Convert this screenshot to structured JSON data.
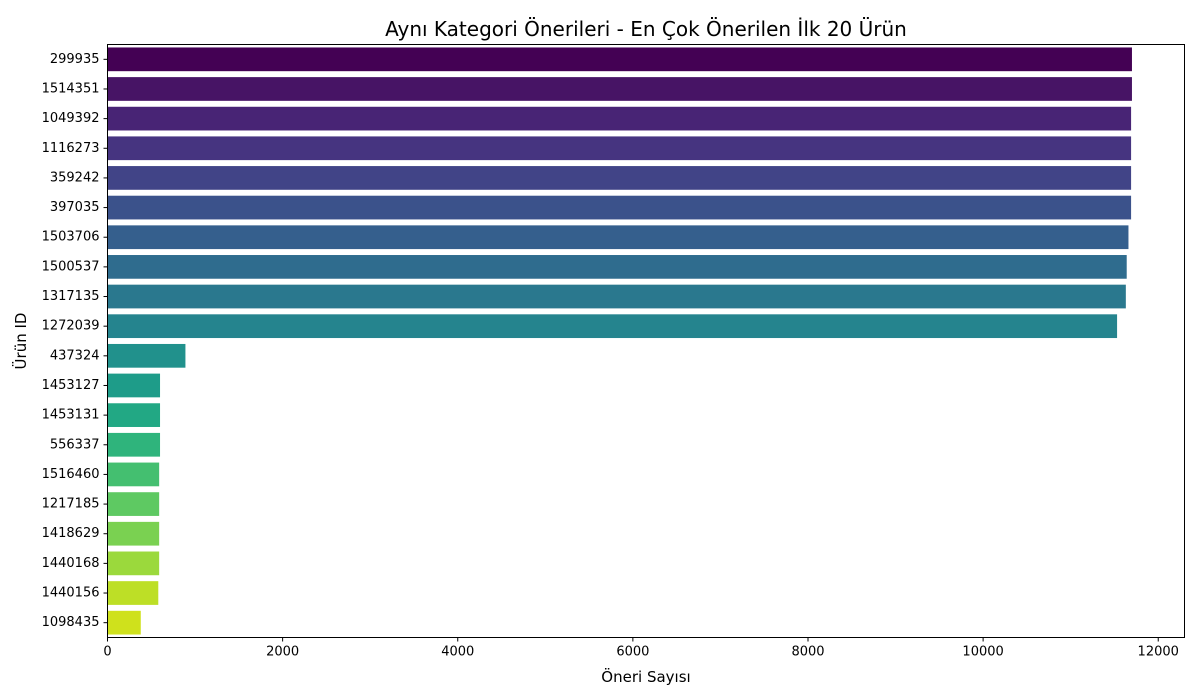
{
  "chart_data": {
    "type": "bar",
    "orientation": "horizontal",
    "title": "Aynı Kategori Önerileri - En Çok Önerilen İlk 20 Ürün",
    "xlabel": "Öneri Sayısı",
    "ylabel": "Ürün ID",
    "xlim": [
      0,
      12300
    ],
    "xticks": [
      0,
      2000,
      4000,
      6000,
      8000,
      10000,
      12000
    ],
    "grid": false,
    "palette": "viridis",
    "categories": [
      "299935",
      "1514351",
      "1049392",
      "1116273",
      "359242",
      "397035",
      "1503706",
      "1500537",
      "1317135",
      "1272039",
      "437324",
      "1453127",
      "1453131",
      "556337",
      "1516460",
      "1217185",
      "1418629",
      "1440168",
      "1440156",
      "1098435"
    ],
    "values": [
      11700,
      11700,
      11690,
      11690,
      11690,
      11690,
      11660,
      11640,
      11630,
      11530,
      890,
      600,
      600,
      600,
      590,
      590,
      590,
      590,
      580,
      380
    ],
    "colors": [
      "#440154",
      "#471465",
      "#482475",
      "#463480",
      "#414487",
      "#3b528b",
      "#355f8d",
      "#2f6c8e",
      "#2a788e",
      "#25848e",
      "#21918c",
      "#1e9c89",
      "#22a884",
      "#2fb47c",
      "#44bf70",
      "#5ec962",
      "#7ad151",
      "#9bd93c",
      "#bddf26",
      "#cfe11c"
    ]
  }
}
